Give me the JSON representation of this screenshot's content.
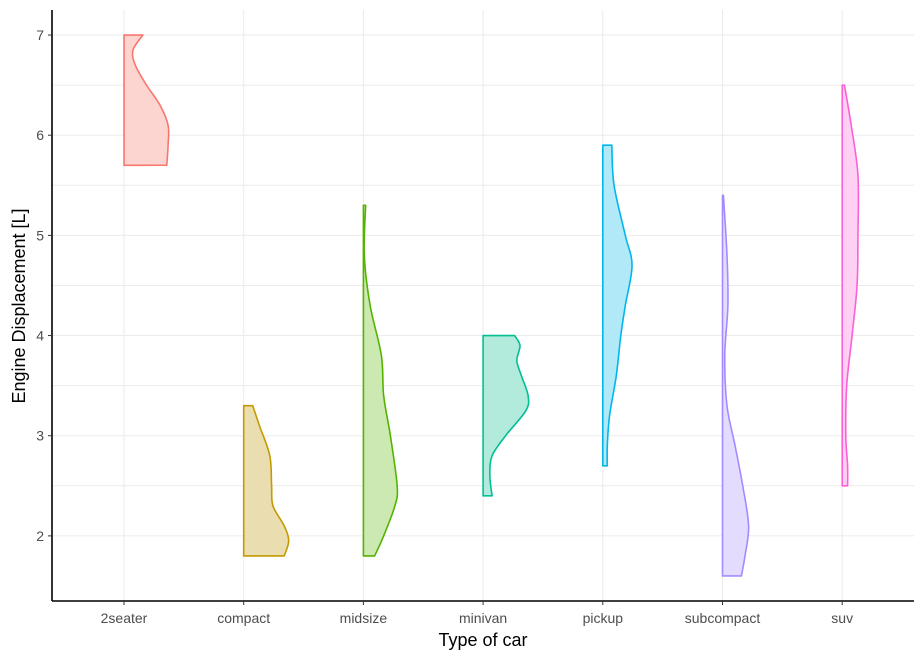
{
  "chart_data": {
    "type": "half-violin",
    "title": "",
    "xlabel": "Type of car",
    "ylabel": "Engine Displacement [L]",
    "ylim": [
      1.35,
      7.25
    ],
    "y_ticks": [
      2,
      3,
      4,
      5,
      6,
      7
    ],
    "grid": true,
    "legend": "none",
    "categories": [
      "2seater",
      "compact",
      "midsize",
      "minivan",
      "pickup",
      "subcompact",
      "suv"
    ],
    "series": [
      {
        "category": "2seater",
        "color": "#F8766D",
        "fill": "#FCD4D0",
        "min": 5.7,
        "max": 7.0,
        "density": [
          [
            7.0,
            0.42
          ],
          [
            6.85,
            0.2
          ],
          [
            6.7,
            0.25
          ],
          [
            6.5,
            0.5
          ],
          [
            6.3,
            0.8
          ],
          [
            6.1,
            0.98
          ],
          [
            5.9,
            0.98
          ],
          [
            5.7,
            0.95
          ]
        ]
      },
      {
        "category": "compact",
        "color": "#C49A00",
        "fill": "#EADDB0",
        "min": 1.8,
        "max": 3.3,
        "density": [
          [
            3.3,
            0.2
          ],
          [
            3.1,
            0.35
          ],
          [
            2.8,
            0.58
          ],
          [
            2.5,
            0.62
          ],
          [
            2.3,
            0.65
          ],
          [
            2.1,
            0.9
          ],
          [
            1.95,
            1.0
          ],
          [
            1.8,
            0.9
          ]
        ]
      },
      {
        "category": "midsize",
        "color": "#53B400",
        "fill": "#CDE9B2",
        "min": 1.8,
        "max": 5.3,
        "density": [
          [
            5.3,
            0.05
          ],
          [
            4.8,
            0.02
          ],
          [
            4.3,
            0.15
          ],
          [
            3.8,
            0.4
          ],
          [
            3.4,
            0.45
          ],
          [
            3.0,
            0.6
          ],
          [
            2.5,
            0.75
          ],
          [
            2.3,
            0.7
          ],
          [
            2.0,
            0.45
          ],
          [
            1.8,
            0.25
          ]
        ]
      },
      {
        "category": "minivan",
        "color": "#00C094",
        "fill": "#B2EADC",
        "min": 2.4,
        "max": 4.0,
        "density": [
          [
            4.0,
            0.7
          ],
          [
            3.9,
            0.82
          ],
          [
            3.75,
            0.75
          ],
          [
            3.6,
            0.85
          ],
          [
            3.4,
            1.0
          ],
          [
            3.25,
            0.95
          ],
          [
            3.0,
            0.5
          ],
          [
            2.8,
            0.2
          ],
          [
            2.6,
            0.15
          ],
          [
            2.4,
            0.2
          ]
        ]
      },
      {
        "category": "pickup",
        "color": "#00B6EB",
        "fill": "#B2E9F8",
        "min": 2.7,
        "max": 5.9,
        "density": [
          [
            5.9,
            0.2
          ],
          [
            5.5,
            0.25
          ],
          [
            5.0,
            0.5
          ],
          [
            4.7,
            0.65
          ],
          [
            4.3,
            0.5
          ],
          [
            4.0,
            0.4
          ],
          [
            3.6,
            0.3
          ],
          [
            3.2,
            0.15
          ],
          [
            2.9,
            0.1
          ],
          [
            2.7,
            0.1
          ]
        ]
      },
      {
        "category": "subcompact",
        "color": "#A58AFF",
        "fill": "#E4DCFF",
        "min": 1.6,
        "max": 5.4,
        "density": [
          [
            5.4,
            0.02
          ],
          [
            4.8,
            0.1
          ],
          [
            4.3,
            0.12
          ],
          [
            3.8,
            0.05
          ],
          [
            3.3,
            0.1
          ],
          [
            2.9,
            0.28
          ],
          [
            2.5,
            0.45
          ],
          [
            2.1,
            0.58
          ],
          [
            1.8,
            0.5
          ],
          [
            1.6,
            0.42
          ]
        ]
      },
      {
        "category": "suv",
        "color": "#FB61D7",
        "fill": "#FED0F3",
        "min": 2.5,
        "max": 6.5,
        "density": [
          [
            6.5,
            0.05
          ],
          [
            6.1,
            0.2
          ],
          [
            5.6,
            0.35
          ],
          [
            5.0,
            0.35
          ],
          [
            4.5,
            0.33
          ],
          [
            4.0,
            0.22
          ],
          [
            3.5,
            0.1
          ],
          [
            3.0,
            0.08
          ],
          [
            2.7,
            0.12
          ],
          [
            2.5,
            0.12
          ]
        ]
      }
    ]
  }
}
